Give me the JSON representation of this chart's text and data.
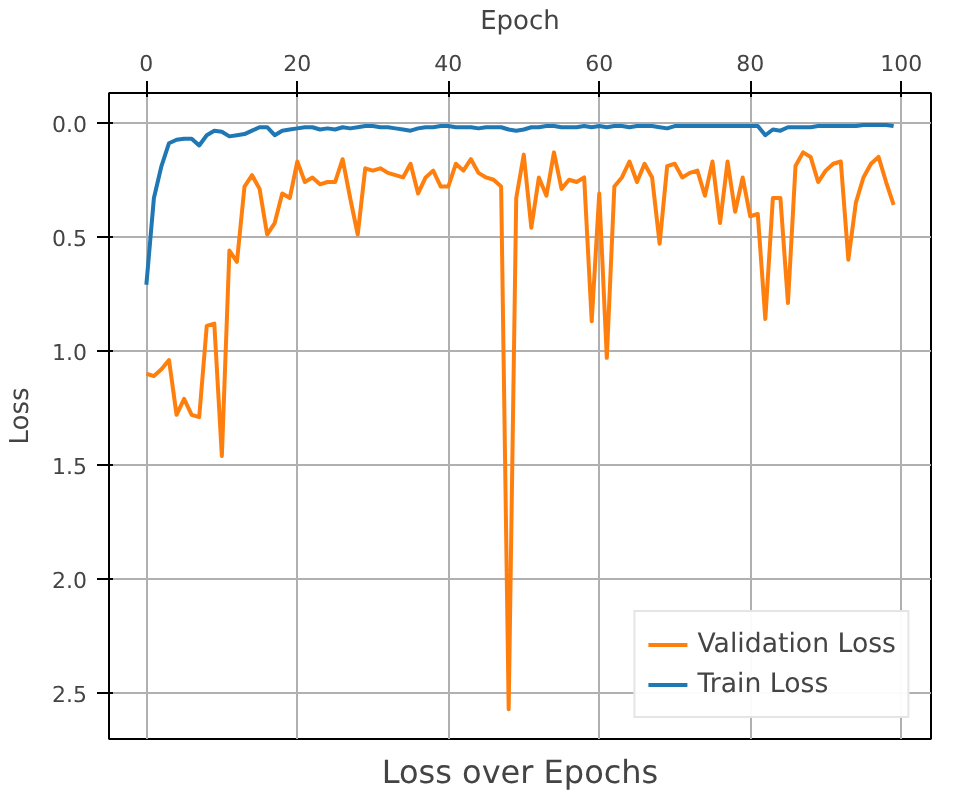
{
  "chart_data": {
    "type": "line",
    "title": "Loss over Epochs",
    "xlabel": "Epoch",
    "ylabel": "Loss",
    "x": [
      0,
      1,
      2,
      3,
      4,
      5,
      6,
      7,
      8,
      9,
      10,
      11,
      12,
      13,
      14,
      15,
      16,
      17,
      18,
      19,
      20,
      21,
      22,
      23,
      24,
      25,
      26,
      27,
      28,
      29,
      30,
      31,
      32,
      33,
      34,
      35,
      36,
      37,
      38,
      39,
      40,
      41,
      42,
      43,
      44,
      45,
      46,
      47,
      48,
      49,
      50,
      51,
      52,
      53,
      54,
      55,
      56,
      57,
      58,
      59,
      60,
      61,
      62,
      63,
      64,
      65,
      66,
      67,
      68,
      69,
      70,
      71,
      72,
      73,
      74,
      75,
      76,
      77,
      78,
      79,
      80,
      81,
      82,
      83,
      84,
      85,
      86,
      87,
      88,
      89,
      90,
      91,
      92,
      93,
      94,
      95,
      96,
      97,
      98,
      99
    ],
    "series": [
      {
        "name": "Validation Loss",
        "color": "#ff7f0e",
        "values": [
          1.1,
          1.11,
          1.08,
          1.04,
          1.28,
          1.21,
          1.28,
          1.29,
          0.89,
          0.88,
          1.46,
          0.56,
          0.61,
          0.28,
          0.23,
          0.29,
          0.49,
          0.44,
          0.31,
          0.33,
          0.17,
          0.26,
          0.24,
          0.27,
          0.26,
          0.26,
          0.16,
          0.33,
          0.49,
          0.2,
          0.21,
          0.2,
          0.22,
          0.23,
          0.24,
          0.18,
          0.31,
          0.24,
          0.21,
          0.28,
          0.28,
          0.18,
          0.21,
          0.16,
          0.22,
          0.24,
          0.25,
          0.28,
          2.57,
          0.33,
          0.14,
          0.46,
          0.24,
          0.32,
          0.13,
          0.29,
          0.25,
          0.26,
          0.24,
          0.87,
          0.31,
          1.03,
          0.28,
          0.24,
          0.17,
          0.26,
          0.18,
          0.24,
          0.53,
          0.19,
          0.18,
          0.24,
          0.22,
          0.21,
          0.32,
          0.17,
          0.44,
          0.17,
          0.39,
          0.24,
          0.41,
          0.4,
          0.86,
          0.33,
          0.33,
          0.79,
          0.19,
          0.13,
          0.15,
          0.26,
          0.21,
          0.18,
          0.17,
          0.6,
          0.35,
          0.24,
          0.18,
          0.15,
          0.26,
          0.36
        ]
      },
      {
        "name": "Train Loss",
        "color": "#1f77b4",
        "values": [
          0.71,
          0.33,
          0.19,
          0.09,
          0.075,
          0.07,
          0.07,
          0.1,
          0.055,
          0.035,
          0.04,
          0.06,
          0.055,
          0.05,
          0.035,
          0.02,
          0.02,
          0.055,
          0.035,
          0.03,
          0.025,
          0.02,
          0.02,
          0.03,
          0.025,
          0.03,
          0.02,
          0.025,
          0.02,
          0.015,
          0.015,
          0.02,
          0.02,
          0.025,
          0.03,
          0.035,
          0.025,
          0.02,
          0.02,
          0.015,
          0.015,
          0.02,
          0.02,
          0.02,
          0.025,
          0.02,
          0.02,
          0.02,
          0.03,
          0.035,
          0.03,
          0.02,
          0.02,
          0.015,
          0.015,
          0.02,
          0.02,
          0.02,
          0.015,
          0.02,
          0.015,
          0.02,
          0.015,
          0.015,
          0.02,
          0.015,
          0.015,
          0.015,
          0.02,
          0.025,
          0.015,
          0.015,
          0.015,
          0.015,
          0.015,
          0.015,
          0.015,
          0.015,
          0.015,
          0.015,
          0.015,
          0.015,
          0.055,
          0.03,
          0.035,
          0.02,
          0.02,
          0.02,
          0.02,
          0.015,
          0.015,
          0.015,
          0.015,
          0.015,
          0.015,
          0.01,
          0.01,
          0.01,
          0.01,
          0.015
        ]
      }
    ],
    "xlim": [
      -4.95,
      103.95
    ],
    "ylim": [
      2.7,
      -0.13
    ],
    "xticks": [
      0,
      20,
      40,
      60,
      80,
      100
    ],
    "yticks": [
      {
        "value": 0,
        "label": "0.0"
      },
      {
        "value": 0.5,
        "label": "0.5"
      },
      {
        "value": 1,
        "label": "1.0"
      },
      {
        "value": 1.5,
        "label": "1.5"
      },
      {
        "value": 2,
        "label": "2.0"
      },
      {
        "value": 2.5,
        "label": "2.5"
      }
    ],
    "grid": true,
    "legend": "bottom right",
    "marker": "none",
    "line_style": "solid"
  }
}
